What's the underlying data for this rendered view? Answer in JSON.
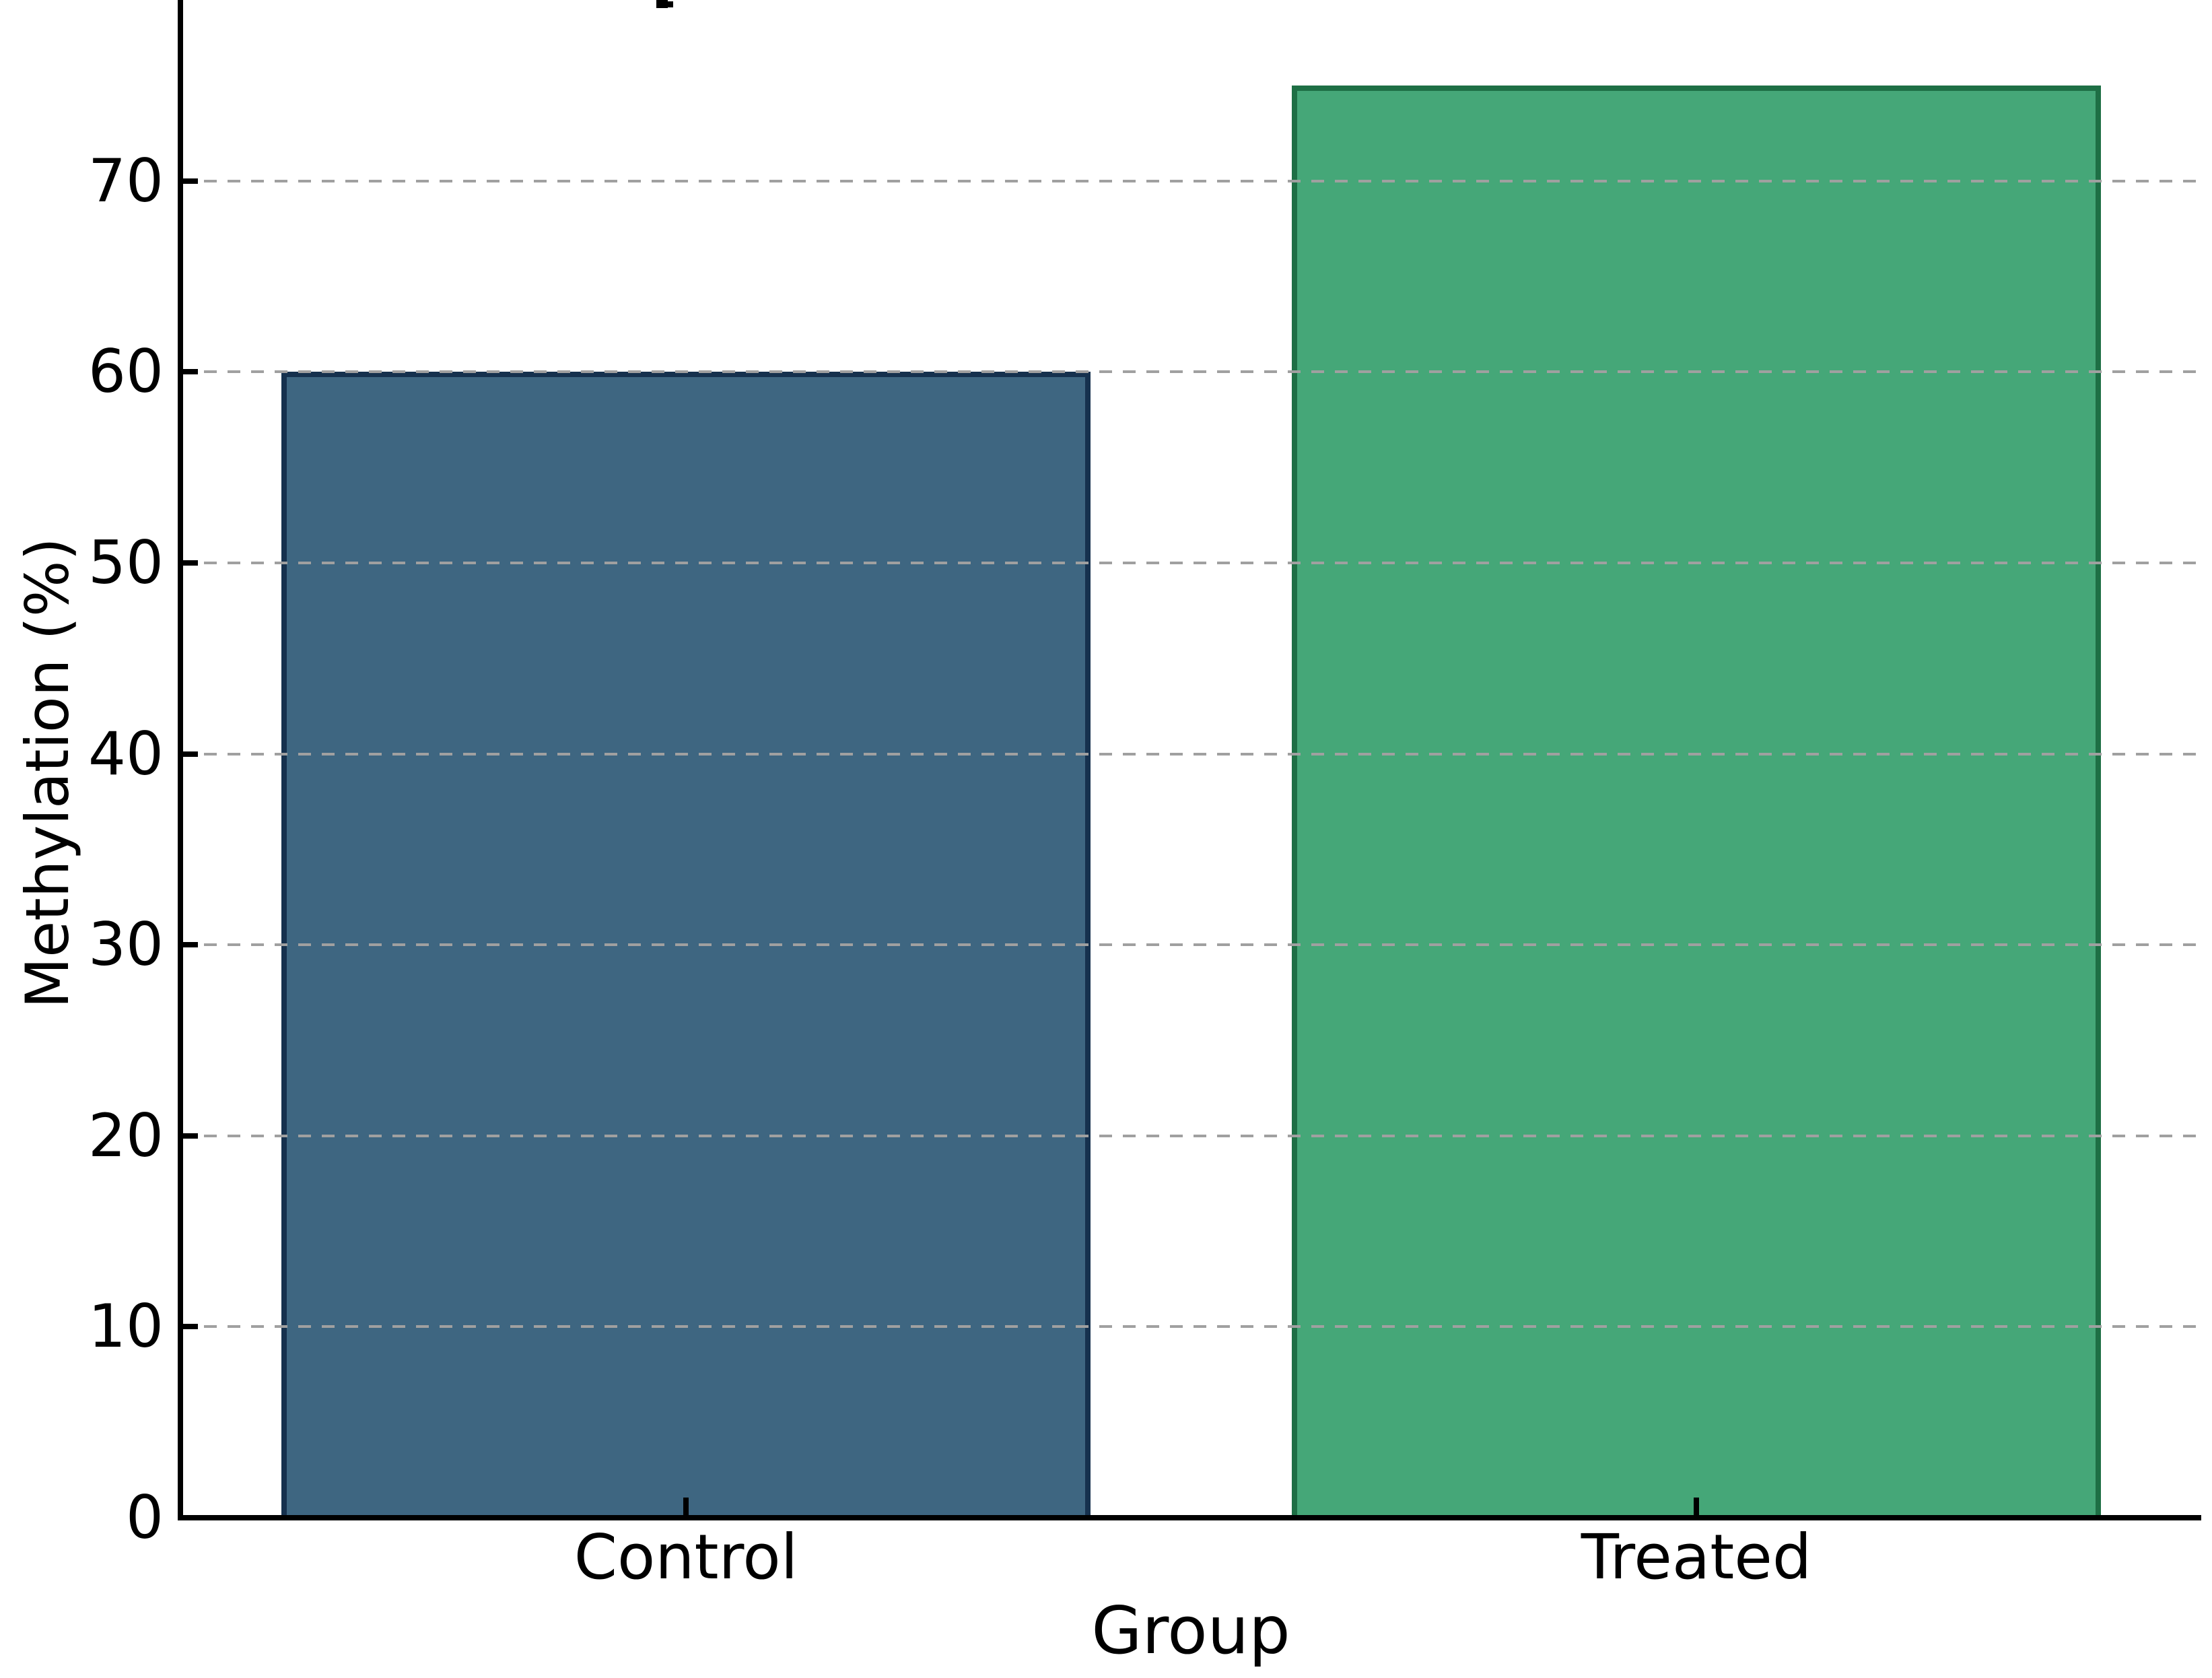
{
  "chart_data": {
    "type": "bar",
    "title": "",
    "categories": [
      "Control",
      "Treated"
    ],
    "values": [
      60,
      75
    ],
    "xlabel": "Group",
    "ylabel": "Methylation (%)",
    "yticks": [
      0,
      10,
      20,
      30,
      40,
      50,
      60,
      70
    ],
    "ylim_visible": [
      0,
      79.4
    ],
    "grid": "horizontal-dashed, drawn above bars",
    "legend": "none",
    "bar_fill_colors": [
      "#3e6681",
      "#45a778"
    ],
    "bar_edge_colors": [
      "#16314e",
      "#1e6f45"
    ],
    "grid_color": "#a0a0a0",
    "axis_color": "#000000",
    "background_color": "#ffffff",
    "note_top_edge": "figure is cropped at top; a small black fragment of a cut-off title is visible"
  }
}
